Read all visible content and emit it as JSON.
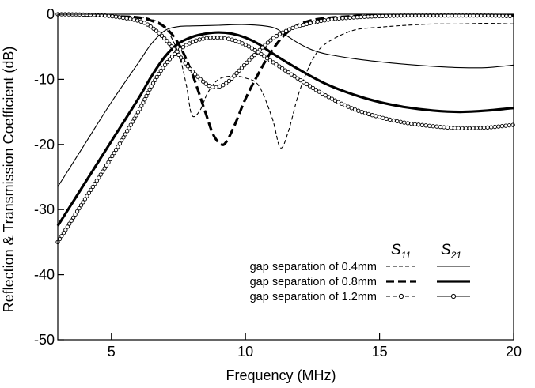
{
  "chart_data": {
    "type": "line",
    "title": "",
    "xlabel": "Frequency (MHz)",
    "ylabel": "Reflection & Transmission Coefficient (dB)",
    "xlim": [
      3,
      20
    ],
    "ylim": [
      -50,
      0
    ],
    "x_ticks": [
      5,
      10,
      15,
      20
    ],
    "y_ticks": [
      0,
      -10,
      -20,
      -30,
      -40,
      -50
    ],
    "grid": false,
    "legend": {
      "placement": "bottom-right",
      "header_s11": "S",
      "header_s11_sub": "11",
      "header_s21": "S",
      "header_s21_sub": "21",
      "rows": [
        {
          "label": "gap separation of 0.4mm",
          "style": "thin"
        },
        {
          "label": "gap separation of 0.8mm",
          "style": "thick"
        },
        {
          "label": "gap separation of 1.2mm",
          "style": "circle"
        }
      ]
    },
    "series": [
      {
        "parameter": "S11",
        "gap": "0.4mm",
        "style": "thin-dashed",
        "x": [
          3,
          5,
          6,
          6.5,
          7,
          7.5,
          7.8,
          8,
          8.3,
          8.6,
          9,
          9.5,
          10,
          10.5,
          11,
          11.3,
          11.6,
          12,
          12.5,
          13,
          14,
          15,
          16,
          17,
          18,
          19,
          20
        ],
        "y": [
          0,
          -0.2,
          -0.4,
          -0.8,
          -2,
          -6,
          -11,
          -15.5,
          -14.8,
          -12,
          -10,
          -9.5,
          -9.8,
          -11,
          -16,
          -20.5,
          -18,
          -12,
          -7,
          -4.5,
          -2.5,
          -2,
          -1.7,
          -1.5,
          -1.5,
          -1.4,
          -1.5
        ]
      },
      {
        "parameter": "S21",
        "gap": "0.4mm",
        "style": "thin-solid",
        "x": [
          3,
          4,
          5,
          6,
          6.5,
          7,
          7.5,
          8,
          9,
          10,
          11,
          11.5,
          12,
          12.5,
          13,
          14,
          15,
          16,
          17,
          18,
          19,
          20
        ],
        "y": [
          -26.5,
          -20,
          -13.5,
          -7.5,
          -4.5,
          -2.5,
          -1.9,
          -1.8,
          -1.7,
          -1.6,
          -2,
          -3.2,
          -4.5,
          -5.5,
          -6.1,
          -6.8,
          -7.3,
          -7.7,
          -8,
          -8.2,
          -8.2,
          -7.8
        ]
      },
      {
        "parameter": "S11",
        "gap": "0.8mm",
        "style": "thick-dashed",
        "x": [
          3,
          5,
          6,
          6.5,
          7,
          7.5,
          8,
          8.5,
          8.8,
          9.1,
          9.3,
          9.6,
          10,
          10.5,
          11,
          11.5,
          12,
          12.5,
          13,
          14,
          15,
          16,
          17,
          18,
          19,
          20
        ],
        "y": [
          0,
          -0.3,
          -0.5,
          -1,
          -2,
          -4.5,
          -9,
          -15,
          -18.5,
          -20,
          -19.5,
          -17,
          -13,
          -9,
          -5.5,
          -3,
          -1.6,
          -0.9,
          -0.6,
          -0.3,
          -0.2,
          -0.2,
          -0.2,
          -0.2,
          -0.2,
          -0.2
        ]
      },
      {
        "parameter": "S21",
        "gap": "0.8mm",
        "style": "thick-solid",
        "x": [
          3,
          4,
          5,
          6,
          6.5,
          7,
          7.5,
          8,
          8.5,
          9,
          9.5,
          10,
          10.5,
          11,
          12,
          13,
          14,
          15,
          16,
          17,
          18,
          19,
          20
        ],
        "y": [
          -32.5,
          -26,
          -19.5,
          -13,
          -9.5,
          -6.5,
          -4.5,
          -3.5,
          -3,
          -2.8,
          -3,
          -3.6,
          -4.6,
          -6,
          -8.5,
          -10.7,
          -12.3,
          -13.5,
          -14.3,
          -14.8,
          -15,
          -14.8,
          -14.4
        ]
      },
      {
        "parameter": "S11",
        "gap": "1.2mm",
        "style": "circle-dashed",
        "x": [
          3,
          4,
          5,
          6,
          6.5,
          7,
          7.5,
          8,
          8.5,
          8.8,
          9.1,
          9.4,
          9.8,
          10.3,
          11,
          11.5,
          12,
          13,
          14,
          15,
          16,
          17,
          18,
          19,
          20
        ],
        "y": [
          0,
          -0.05,
          -0.3,
          -1,
          -2,
          -3.8,
          -6.2,
          -8.7,
          -10.6,
          -11.2,
          -11,
          -10.2,
          -8.5,
          -6.4,
          -3.8,
          -2.6,
          -1.8,
          -0.9,
          -0.5,
          -0.3,
          -0.2,
          -0.2,
          -0.2,
          -0.2,
          -0.3
        ]
      },
      {
        "parameter": "S21",
        "gap": "1.2mm",
        "style": "circle-solid",
        "x": [
          3,
          4,
          5,
          6,
          6.5,
          7,
          7.5,
          8,
          8.5,
          9,
          9.5,
          10,
          10.5,
          11,
          12,
          13,
          14,
          15,
          16,
          17,
          18,
          19,
          20
        ],
        "y": [
          -35,
          -28.5,
          -22,
          -15,
          -11,
          -7.8,
          -5.6,
          -4.3,
          -3.7,
          -3.6,
          -3.9,
          -4.7,
          -5.9,
          -7.3,
          -10,
          -12.5,
          -14.5,
          -15.8,
          -16.7,
          -17.2,
          -17.5,
          -17.4,
          -17
        ]
      }
    ]
  }
}
